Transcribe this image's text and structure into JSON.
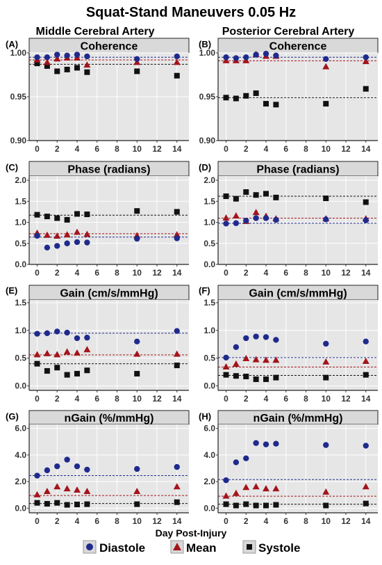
{
  "figure": {
    "title": "Squat-Stand Maneuvers 0.05 Hz",
    "col_titles": [
      "Middle Cerebral Artery",
      "Posterior Cerebral Artery"
    ],
    "xlabel": "Day Post-Injury",
    "legend": [
      "Diastole",
      "Mean",
      "Systole"
    ],
    "colors": {
      "diastole": "#1f2a8c",
      "mean": "#a3141b",
      "systole": "#111111",
      "panel_bg": "#e6e6e6",
      "strip_bg": "#d9d9d9"
    },
    "markers": {
      "diastole": "circle",
      "mean": "triangle",
      "systole": "square"
    }
  },
  "chart_data": [
    {
      "panel": "(A)",
      "type": "scatter",
      "title": "Coherence",
      "xlabel": "Day Post-Injury",
      "x": [
        0,
        1,
        2,
        3,
        4,
        5,
        10,
        14
      ],
      "xticks": [
        0,
        2,
        4,
        6,
        8,
        10,
        12,
        14
      ],
      "xlim": [
        -0.8,
        15.2
      ],
      "ylim": [
        0.9,
        1.0
      ],
      "yticks": [
        "0.90",
        "0.95",
        "1.00"
      ],
      "series": [
        {
          "name": "Diastole",
          "values": [
            0.995,
            0.995,
            0.998,
            0.997,
            0.998,
            0.996,
            0.993,
            0.996
          ],
          "ref": 0.995
        },
        {
          "name": "Mean",
          "values": [
            0.992,
            0.989,
            0.993,
            0.994,
            0.994,
            0.986,
            0.989,
            0.989
          ],
          "ref": 0.992
        },
        {
          "name": "Systole",
          "values": [
            0.988,
            0.985,
            0.979,
            0.981,
            0.983,
            0.978,
            0.979,
            0.974
          ],
          "ref": 0.987
        }
      ]
    },
    {
      "panel": "(B)",
      "type": "scatter",
      "title": "Coherence",
      "xlabel": "Day Post-Injury",
      "x": [
        0,
        1,
        2,
        3,
        4,
        5,
        10,
        14
      ],
      "xticks": [
        0,
        2,
        4,
        6,
        8,
        10,
        12,
        14
      ],
      "xlim": [
        -0.8,
        15.2
      ],
      "ylim": [
        0.9,
        1.0
      ],
      "yticks": [
        "0.90",
        "0.95",
        "1.00"
      ],
      "series": [
        {
          "name": "Diastole",
          "values": [
            0.995,
            0.994,
            0.995,
            0.998,
            0.999,
            0.997,
            0.993,
            0.995
          ],
          "ref": 0.995
        },
        {
          "name": "Mean",
          "values": [
            0.991,
            0.991,
            0.991,
            0.998,
            0.996,
            0.996,
            0.984,
            0.99
          ],
          "ref": 0.991
        },
        {
          "name": "Systole",
          "values": [
            0.949,
            0.948,
            0.951,
            0.954,
            0.942,
            0.941,
            0.942,
            0.959
          ],
          "ref": 0.949
        }
      ]
    },
    {
      "panel": "(C)",
      "type": "scatter",
      "title": "Phase (radians)",
      "xlabel": "Day Post-Injury",
      "x": [
        0,
        1,
        2,
        3,
        4,
        5,
        10,
        14
      ],
      "xticks": [
        0,
        2,
        4,
        6,
        8,
        10,
        12,
        14
      ],
      "xlim": [
        -0.8,
        15.2
      ],
      "ylim": [
        0,
        2.1
      ],
      "yticks": [
        "0.0",
        "0.5",
        "1.0",
        "1.5",
        "2.0"
      ],
      "series": [
        {
          "name": "Diastole",
          "values": [
            0.68,
            0.4,
            0.44,
            0.5,
            0.53,
            0.52,
            0.61,
            0.62
          ],
          "ref": 0.65
        },
        {
          "name": "Mean",
          "values": [
            0.74,
            0.69,
            0.67,
            0.7,
            0.76,
            0.71,
            0.68,
            0.7
          ],
          "ref": 0.73
        },
        {
          "name": "Systole",
          "values": [
            1.18,
            1.14,
            1.1,
            1.06,
            1.2,
            1.19,
            1.27,
            1.25
          ],
          "ref": 1.17
        }
      ]
    },
    {
      "panel": "(D)",
      "type": "scatter",
      "title": "Phase (radians)",
      "xlabel": "Day Post-Injury",
      "x": [
        0,
        1,
        2,
        3,
        4,
        5,
        10,
        14
      ],
      "xticks": [
        0,
        2,
        4,
        6,
        8,
        10,
        12,
        14
      ],
      "xlim": [
        -0.8,
        15.2
      ],
      "ylim": [
        0,
        2.1
      ],
      "yticks": [
        "0.0",
        "0.5",
        "1.0",
        "1.5",
        "2.0"
      ],
      "series": [
        {
          "name": "Diastole",
          "values": [
            0.97,
            0.98,
            1.04,
            1.1,
            1.1,
            1.06,
            1.07,
            1.05
          ],
          "ref": 0.98
        },
        {
          "name": "Mean",
          "values": [
            1.1,
            1.15,
            1.02,
            1.23,
            1.14,
            1.08,
            1.08,
            1.08
          ],
          "ref": 1.1
        },
        {
          "name": "Systole",
          "values": [
            1.62,
            1.56,
            1.72,
            1.65,
            1.68,
            1.59,
            1.57,
            1.48
          ],
          "ref": 1.62
        }
      ]
    },
    {
      "panel": "(E)",
      "type": "scatter",
      "title": "Gain (cm/s/mmHg)",
      "xlabel": "Day Post-Injury",
      "x": [
        0,
        1,
        2,
        3,
        4,
        5,
        10,
        14
      ],
      "xticks": [
        0,
        2,
        4,
        6,
        8,
        10,
        12,
        14
      ],
      "xlim": [
        -0.8,
        15.2
      ],
      "ylim": [
        -0.08,
        1.55
      ],
      "yticks": [
        "0.0",
        "0.5",
        "1.0",
        "1.5"
      ],
      "series": [
        {
          "name": "Diastole",
          "values": [
            0.94,
            0.95,
            0.98,
            0.96,
            0.86,
            0.87,
            0.8,
            0.99
          ],
          "ref": 0.95
        },
        {
          "name": "Mean",
          "values": [
            0.56,
            0.58,
            0.56,
            0.61,
            0.59,
            0.65,
            0.57,
            0.57
          ],
          "ref": 0.56
        },
        {
          "name": "Systole",
          "values": [
            0.4,
            0.27,
            0.33,
            0.2,
            0.22,
            0.28,
            0.22,
            0.37
          ],
          "ref": 0.4
        }
      ]
    },
    {
      "panel": "(F)",
      "type": "scatter",
      "title": "Gain (cm/s/mmHg)",
      "xlabel": "Day Post-Injury",
      "x": [
        0,
        1,
        2,
        3,
        4,
        5,
        10,
        14
      ],
      "xticks": [
        0,
        2,
        4,
        6,
        8,
        10,
        12,
        14
      ],
      "xlim": [
        -0.8,
        15.2
      ],
      "ylim": [
        -0.08,
        1.55
      ],
      "yticks": [
        "0.0",
        "0.5",
        "1.0",
        "1.5"
      ],
      "series": [
        {
          "name": "Diastole",
          "values": [
            0.51,
            0.7,
            0.86,
            0.89,
            0.88,
            0.83,
            0.76,
            0.8
          ],
          "ref": 0.51
        },
        {
          "name": "Mean",
          "values": [
            0.34,
            0.39,
            0.49,
            0.47,
            0.46,
            0.46,
            0.43,
            0.44
          ],
          "ref": 0.34
        },
        {
          "name": "Systole",
          "values": [
            0.2,
            0.18,
            0.17,
            0.12,
            0.12,
            0.15,
            0.15,
            0.2
          ],
          "ref": 0.19
        }
      ]
    },
    {
      "panel": "(G)",
      "type": "scatter",
      "title": "nGain (%/mmHg)",
      "xlabel": "Day Post-Injury",
      "x": [
        0,
        1,
        2,
        3,
        4,
        5,
        10,
        14
      ],
      "xticks": [
        0,
        2,
        4,
        6,
        8,
        10,
        12,
        14
      ],
      "xlim": [
        -0.8,
        15.2
      ],
      "ylim": [
        -0.35,
        6.3
      ],
      "yticks": [
        "0.0",
        "2.0",
        "4.0",
        "6.0"
      ],
      "series": [
        {
          "name": "Diastole",
          "values": [
            2.45,
            2.85,
            3.15,
            3.65,
            3.15,
            2.9,
            2.95,
            3.1
          ],
          "ref": 2.45
        },
        {
          "name": "Mean",
          "values": [
            1.0,
            1.25,
            1.6,
            1.45,
            1.35,
            1.25,
            1.25,
            1.6
          ],
          "ref": 0.95
        },
        {
          "name": "Systole",
          "values": [
            0.4,
            0.33,
            0.4,
            0.25,
            0.28,
            0.3,
            0.3,
            0.45
          ],
          "ref": 0.35
        }
      ]
    },
    {
      "panel": "(H)",
      "type": "scatter",
      "title": "nGain (%/mmHg)",
      "xlabel": "Day Post-Injury",
      "x": [
        0,
        1,
        2,
        3,
        4,
        5,
        10,
        14
      ],
      "xticks": [
        0,
        2,
        4,
        6,
        8,
        10,
        12,
        14
      ],
      "xlim": [
        -0.8,
        15.2
      ],
      "ylim": [
        -0.35,
        6.3
      ],
      "yticks": [
        "0.0",
        "2.0",
        "4.0",
        "6.0"
      ],
      "series": [
        {
          "name": "Diastole",
          "values": [
            2.1,
            3.45,
            3.75,
            4.9,
            4.8,
            4.85,
            4.75,
            4.7
          ],
          "ref": 2.15
        },
        {
          "name": "Mean",
          "values": [
            0.9,
            1.1,
            1.55,
            1.6,
            1.45,
            1.45,
            1.2,
            1.6
          ],
          "ref": 0.9
        },
        {
          "name": "Systole",
          "values": [
            0.3,
            0.2,
            0.3,
            0.2,
            0.2,
            0.25,
            0.2,
            0.35
          ],
          "ref": 0.3
        }
      ]
    }
  ]
}
